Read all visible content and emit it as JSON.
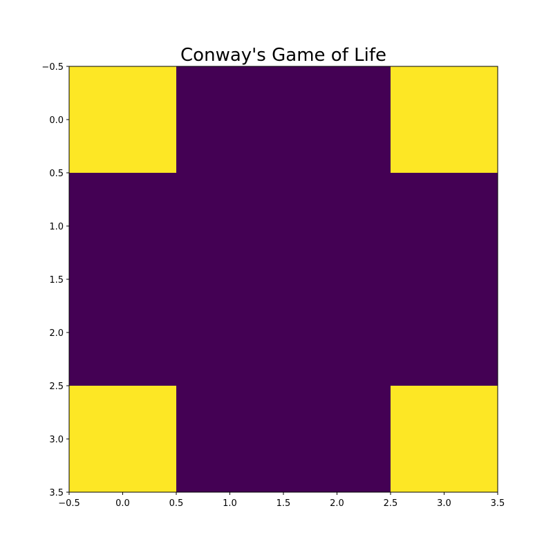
{
  "chart_data": {
    "type": "heatmap",
    "title": "Conway's Game of Life",
    "xlabel": "",
    "ylabel": "",
    "xlim": [
      -0.5,
      3.5
    ],
    "ylim": [
      3.5,
      -0.5
    ],
    "y_inverted": true,
    "x_ticks": [
      -0.5,
      0.0,
      0.5,
      1.0,
      1.5,
      2.0,
      2.5,
      3.0,
      3.5
    ],
    "y_ticks": [
      -0.5,
      0.0,
      0.5,
      1.0,
      1.5,
      2.0,
      2.5,
      3.0,
      3.5
    ],
    "x_tick_labels": [
      "−0.5",
      "0.0",
      "0.5",
      "1.0",
      "1.5",
      "2.0",
      "2.5",
      "3.0",
      "3.5"
    ],
    "y_tick_labels": [
      "−0.5",
      "0.0",
      "0.5",
      "1.0",
      "1.5",
      "2.0",
      "2.5",
      "3.0",
      "3.5"
    ],
    "grid": false,
    "colormap": "viridis",
    "colors": {
      "alive": "#fde725",
      "dead": "#440154"
    },
    "cells": [
      [
        1,
        0,
        0,
        1
      ],
      [
        0,
        0,
        0,
        0
      ],
      [
        0,
        0,
        0,
        0
      ],
      [
        1,
        0,
        0,
        1
      ]
    ]
  }
}
